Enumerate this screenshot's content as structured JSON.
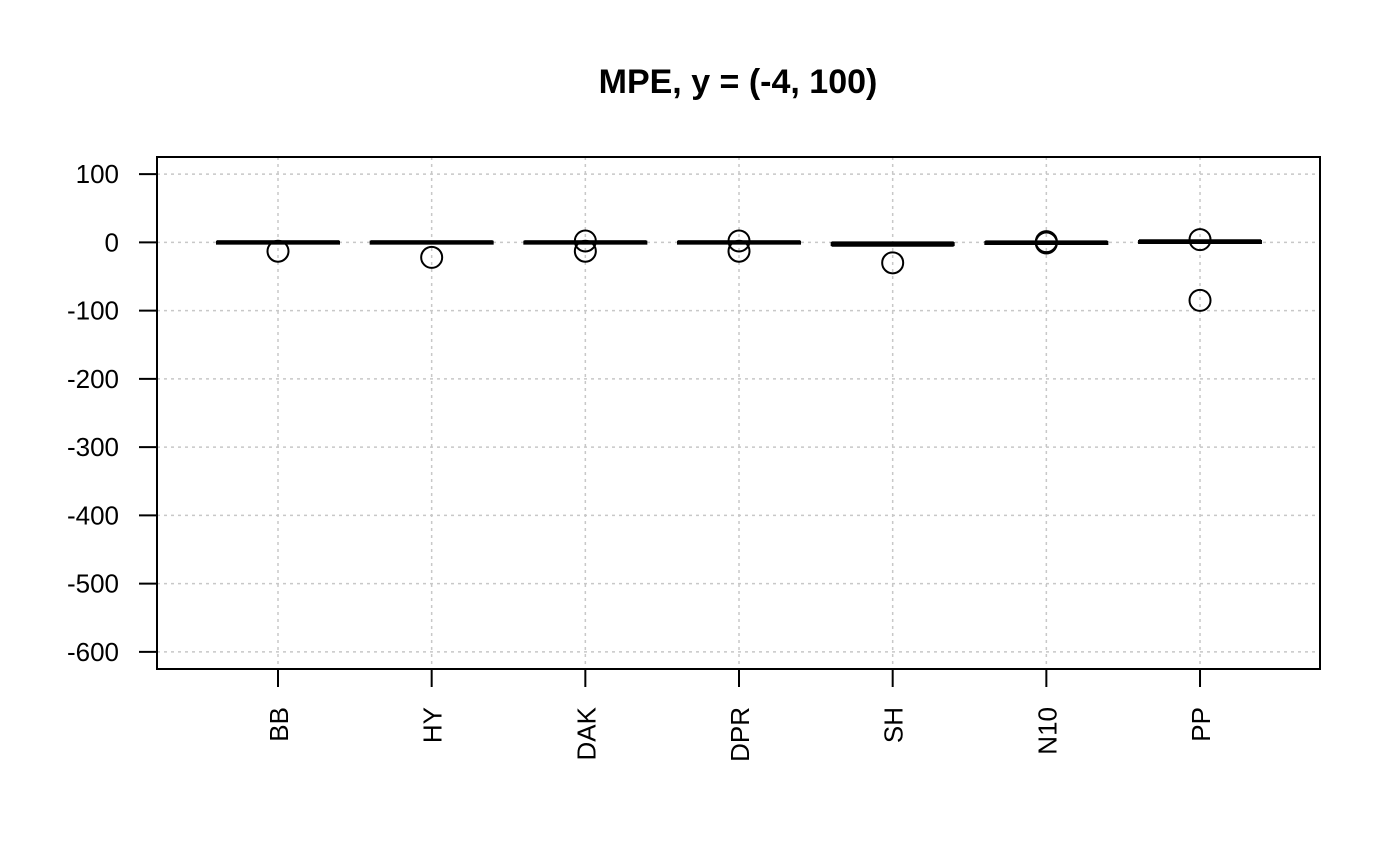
{
  "chart_data": {
    "type": "boxplot",
    "title": "MPE, y = (-4, 100)",
    "xlabel": "",
    "ylabel": "",
    "ylim": [
      -625,
      125
    ],
    "yticks": [
      100,
      0,
      -100,
      -200,
      -300,
      -400,
      -500,
      -600
    ],
    "grid": true,
    "grid_style": "dotted",
    "categories": [
      "BB",
      "HY",
      "DAK",
      "DPR",
      "SH",
      "N10",
      "PP"
    ],
    "boxes": [
      {
        "category": "BB",
        "min": -1.5,
        "q1": -1.0,
        "median": 0.0,
        "q3": 1.0,
        "max": 1.5,
        "outliers": [
          -13
        ]
      },
      {
        "category": "HY",
        "min": -1.5,
        "q1": -1.0,
        "median": 0.0,
        "q3": 1.0,
        "max": 1.5,
        "outliers": [
          -22
        ]
      },
      {
        "category": "DAK",
        "min": -1.5,
        "q1": -1.0,
        "median": 0.0,
        "q3": 1.0,
        "max": 1.5,
        "outliers": [
          2,
          -13
        ]
      },
      {
        "category": "DPR",
        "min": -1.5,
        "q1": -1.0,
        "median": 0.0,
        "q3": 1.0,
        "max": 1.5,
        "outliers": [
          2,
          -13
        ]
      },
      {
        "category": "SH",
        "min": -5.0,
        "q1": -4.0,
        "median": -2.0,
        "q3": -1.0,
        "max": 0.0,
        "outliers": [
          -30
        ]
      },
      {
        "category": "N10",
        "min": -1.0,
        "q1": -0.5,
        "median": 0.0,
        "q3": 0.5,
        "max": 1.0,
        "outliers": [
          1,
          0,
          -1
        ]
      },
      {
        "category": "PP",
        "min": -1.0,
        "q1": -0.5,
        "median": 1.0,
        "q3": 2.0,
        "max": 3.0,
        "outliers": [
          4,
          -85
        ]
      }
    ],
    "colors": {
      "box_fill": "#ffffff",
      "stroke": "#000000",
      "grid": "#c8c8c8"
    }
  }
}
